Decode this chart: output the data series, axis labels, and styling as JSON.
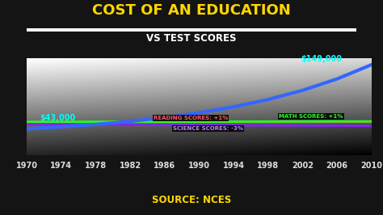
{
  "title": "COST OF AN EDUCATION",
  "subtitle": "VS TEST SCORES",
  "source": "SOURCE: NCES",
  "years": [
    1970,
    1974,
    1978,
    1982,
    1986,
    1990,
    1994,
    1998,
    2002,
    2006,
    2010
  ],
  "cost_label_start": "$43,000",
  "cost_label_end": "$149,000",
  "reading_label": "READING SCORES: +1%",
  "math_label": "MATH SCORES: +1%",
  "science_label": "SCIENCE SCORES: -3%",
  "bg_color": "#141414",
  "title_color": "#FFD700",
  "subtitle_color": "#FFFFFF",
  "source_color": "#FFD700",
  "cost_line_color": "#3366FF",
  "reading_line_color": "#FF2222",
  "math_line_color": "#22FF22",
  "science_line_color": "#8822EE",
  "cost_label_color": "#00FFFF",
  "reading_label_color": "#FF5555",
  "math_label_color": "#22FF22",
  "science_label_color": "#BB88FF",
  "tick_color": "#DDDDDD"
}
